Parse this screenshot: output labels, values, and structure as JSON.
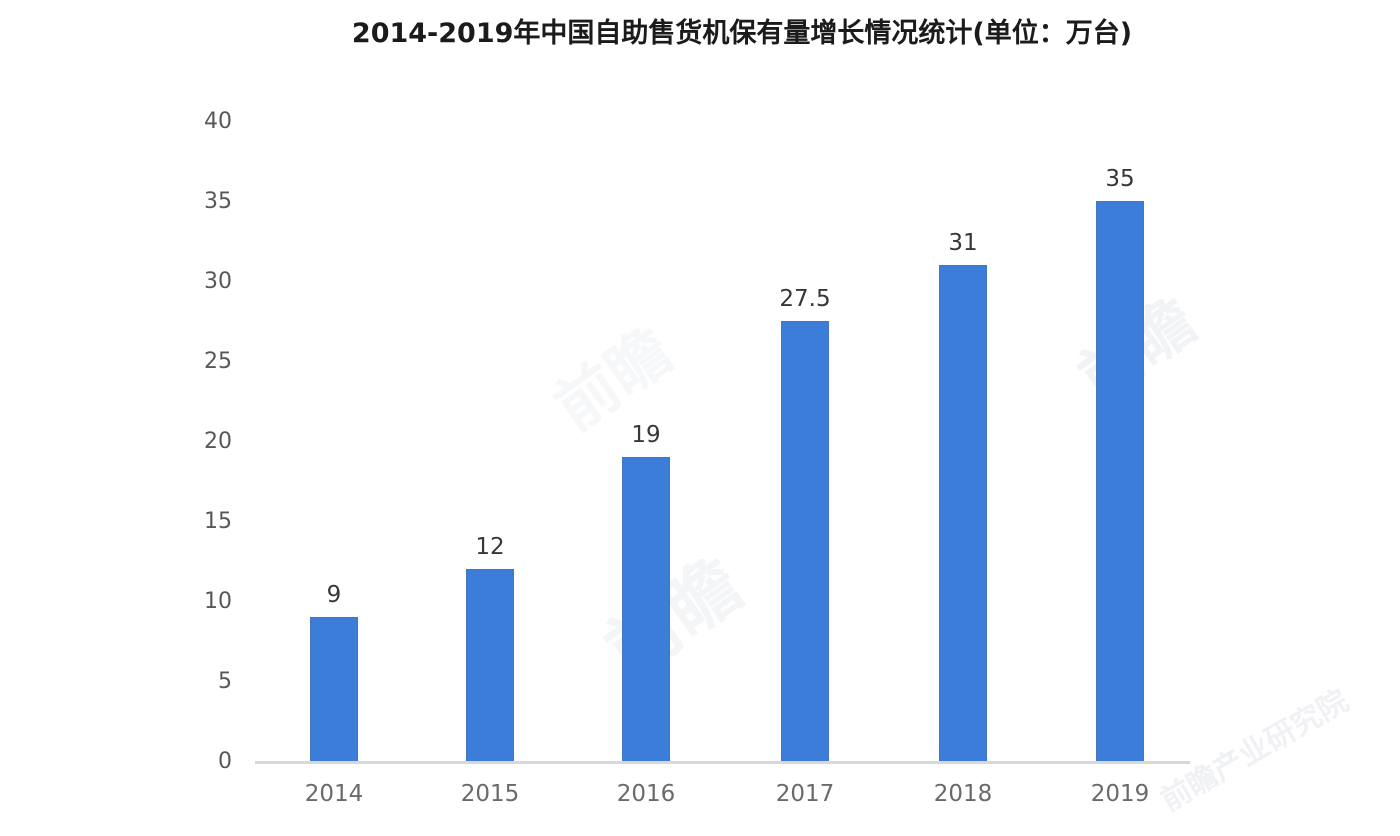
{
  "title": "2014-2019年中国自助售货机保有量增长情况统计(单位：万台)",
  "chart_data": {
    "type": "bar",
    "title": "2014-2019年中国自助售货机保有量增长情况统计(单位：万台)",
    "unit": "万台",
    "categories": [
      "2014",
      "2015",
      "2016",
      "2017",
      "2018",
      "2019"
    ],
    "values": [
      9,
      12,
      19,
      27.5,
      31,
      35
    ],
    "data_labels": [
      "9",
      "12",
      "19",
      "27.5",
      "31",
      "35"
    ],
    "xlabel": "",
    "ylabel": "",
    "ylim": [
      0,
      40
    ],
    "yticks": [
      0,
      5,
      10,
      15,
      20,
      25,
      30,
      35,
      40
    ],
    "grid": false,
    "legend": false,
    "bar_color": "#3c7dda",
    "axis_line_color": "#d8d8d8",
    "label_color": "#373737",
    "tick_label_color": "#585858"
  },
  "watermark": {
    "fragments": [
      "前瞻",
      "前瞻",
      "前瞻",
      "前瞻产业研究院"
    ]
  }
}
